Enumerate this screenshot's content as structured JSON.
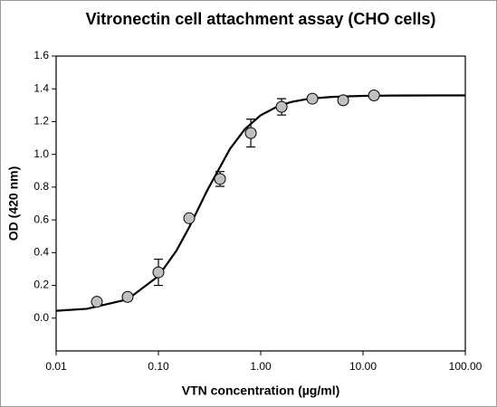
{
  "chart_data": {
    "type": "scatter",
    "title": "Vitronectin cell attachment assay (CHO cells)",
    "x_label": "VTN concentration (µg/ml)",
    "y_label": "OD (420 nm)",
    "x_scale": "log",
    "x": [
      0.025,
      0.05,
      0.1,
      0.2,
      0.4,
      0.8,
      1.6,
      3.2,
      6.4,
      12.8
    ],
    "series": [
      {
        "color": "#c0c0c0",
        "values": [
          0.1,
          0.13,
          0.28,
          0.61,
          0.85,
          1.13,
          1.29,
          1.34,
          1.33,
          1.36
        ],
        "errors": [
          null,
          null,
          0.08,
          null,
          0.045,
          0.085,
          0.05,
          null,
          null,
          null
        ]
      }
    ],
    "fit": {
      "color": "#000000",
      "x": [
        0.01,
        0.02,
        0.05,
        0.1,
        0.15,
        0.2,
        0.3,
        0.5,
        0.7,
        1,
        1.5,
        2,
        3,
        5,
        10,
        20,
        50,
        100
      ],
      "values": [
        0.045,
        0.057,
        0.115,
        0.257,
        0.412,
        0.555,
        0.78,
        1.033,
        1.154,
        1.239,
        1.296,
        1.32,
        1.34,
        1.351,
        1.357,
        1.359,
        1.36,
        1.36
      ]
    },
    "xlim": [
      0.01,
      100
    ],
    "xticks": [
      0.01,
      {
        "value": 0.1,
        "label": "0.10"
      },
      {
        "value": 1,
        "label": "1.00"
      },
      {
        "value": 10,
        "label": "10.00"
      },
      {
        "value": 100,
        "label": "100.00"
      }
    ],
    "ylim": [
      -0.2,
      1.6
    ],
    "yticks": [
      {
        "value": 0,
        "label": "0.0"
      },
      0.2,
      0.4,
      0.6,
      0.8,
      {
        "value": 1,
        "label": "1.0"
      },
      1.2,
      1.4,
      1.6
    ]
  }
}
